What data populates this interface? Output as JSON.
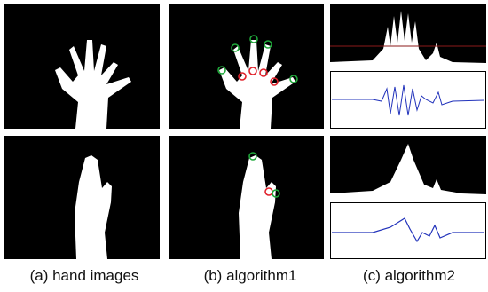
{
  "figure": {
    "captions": [
      "(a) hand images",
      "(b) algorithm1",
      "(c) algorithm2"
    ]
  }
}
